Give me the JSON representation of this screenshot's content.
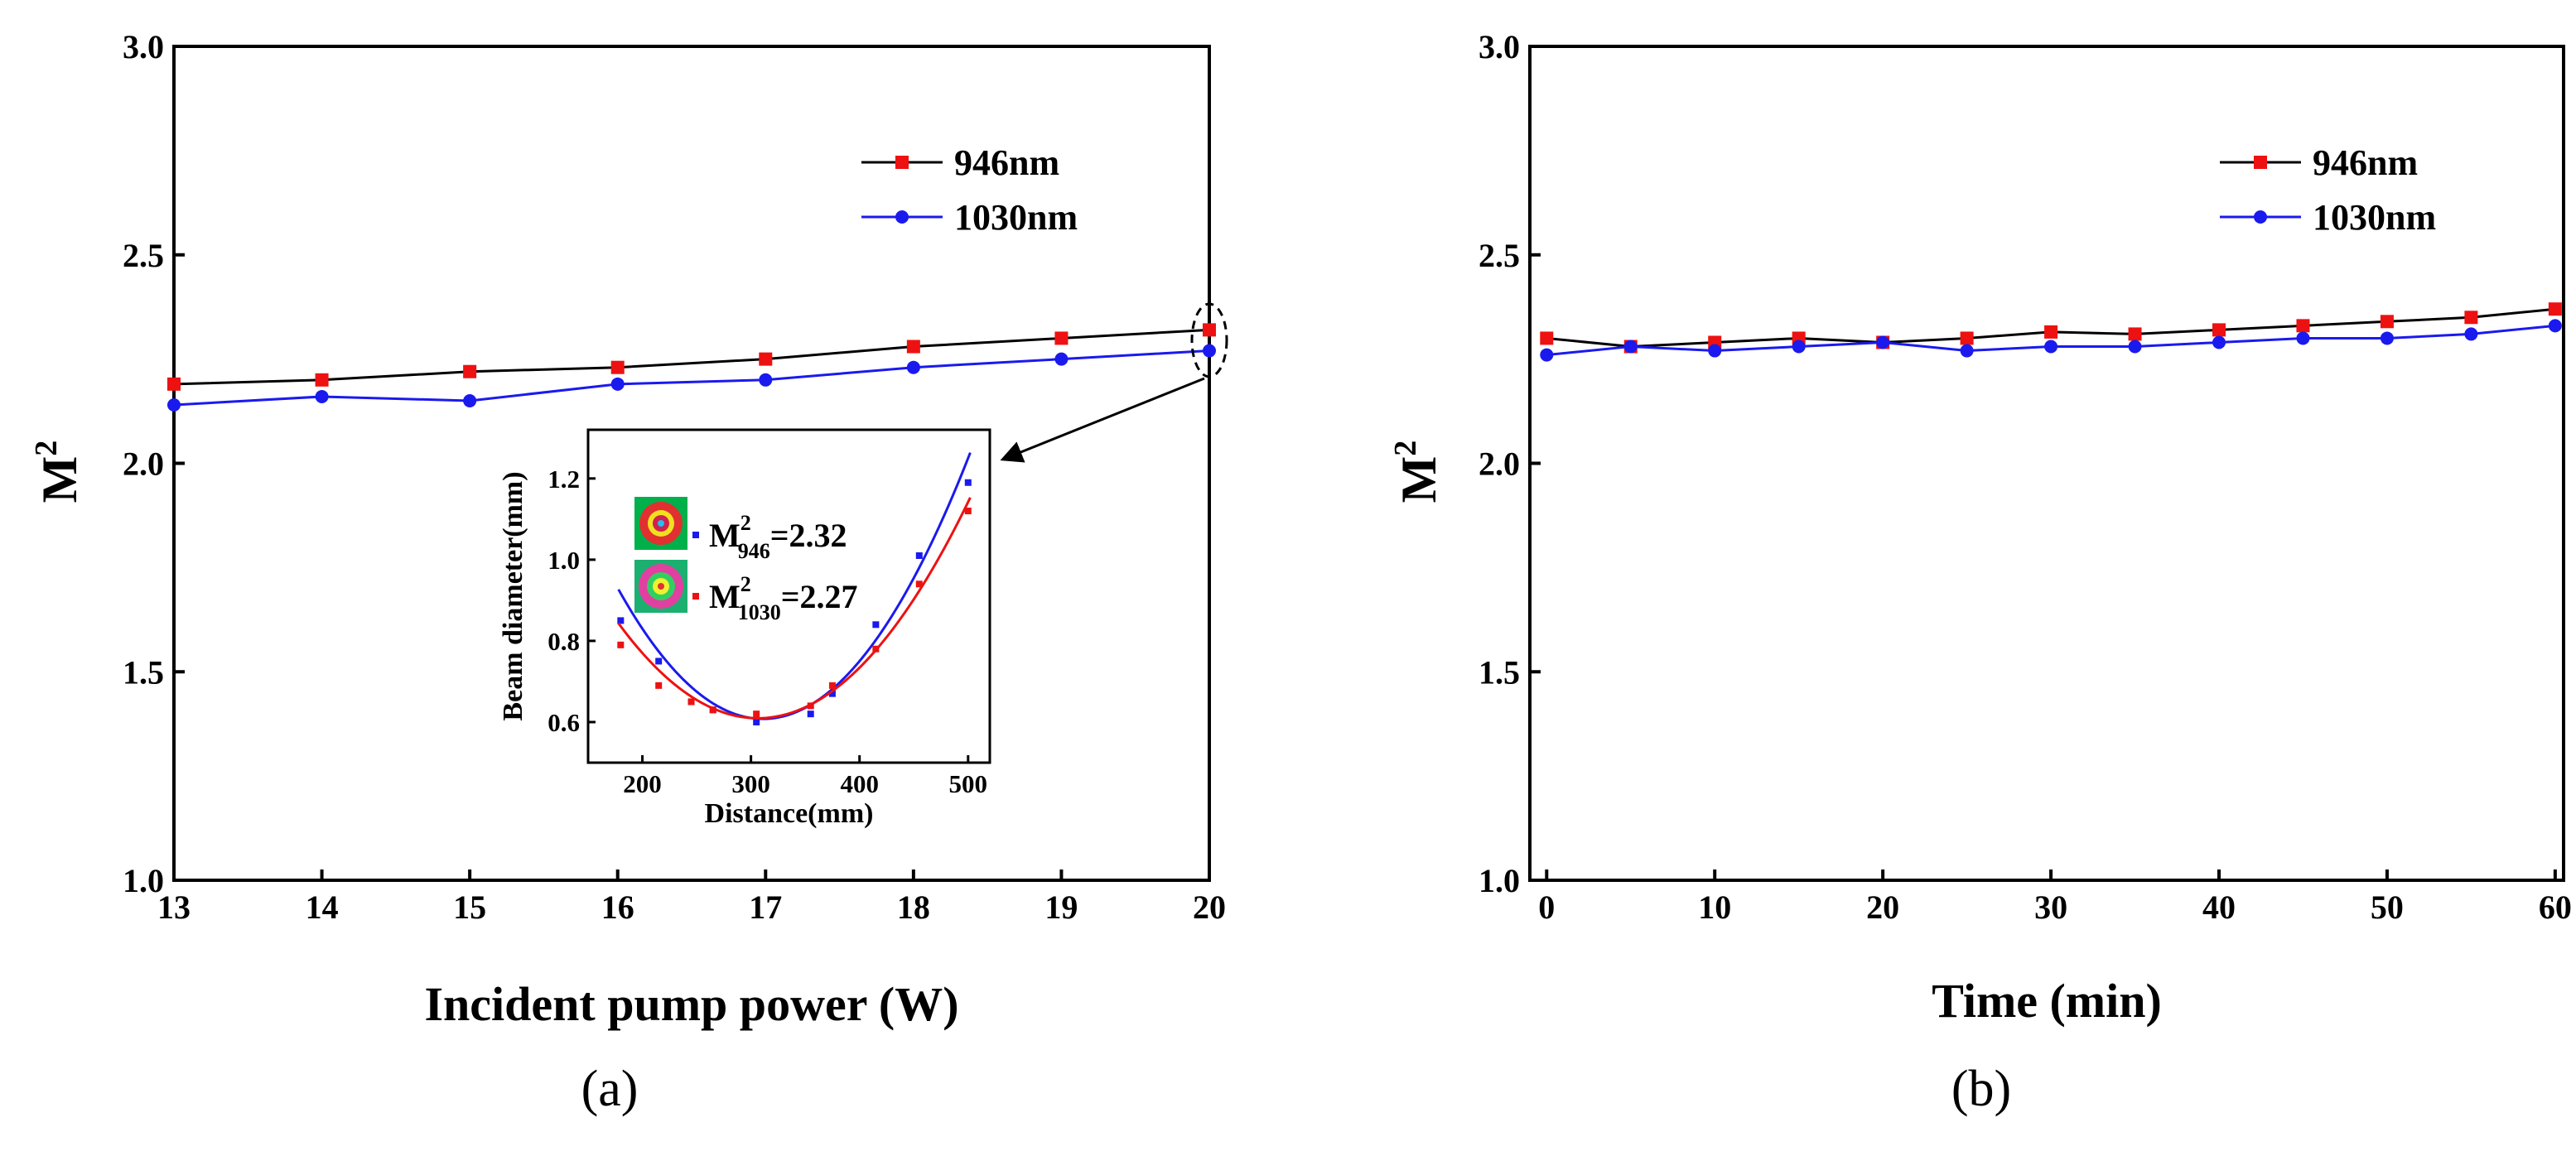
{
  "figure": {
    "panel_a_label": "(a)",
    "panel_b_label": "(b)"
  },
  "colors": {
    "series_946_marker": "#ee1111",
    "series_946_line": "#000000",
    "series_1030_marker": "#1a1aee",
    "series_1030_line": "#1a1aee",
    "inset_fit_946": "#1a1aee",
    "inset_fit_1030": "#ee1111"
  },
  "chart_data": [
    {
      "type": "line",
      "panel": "a",
      "title": "",
      "xlabel": "Incident pump power (W)",
      "ylabel": "M",
      "ylabel_sup": "2",
      "xlim": [
        13,
        20
      ],
      "ylim": [
        1.0,
        3.0
      ],
      "xticks": [
        13,
        14,
        15,
        16,
        17,
        18,
        19,
        20
      ],
      "yticks": [
        1.0,
        1.5,
        2.0,
        2.5,
        3.0
      ],
      "legend": "top-right",
      "x": [
        13,
        14,
        15,
        16,
        17,
        18,
        19,
        20
      ],
      "series": [
        {
          "name": "946nm",
          "marker": "square",
          "values": [
            2.19,
            2.2,
            2.22,
            2.23,
            2.25,
            2.28,
            2.3,
            2.32
          ]
        },
        {
          "name": "1030nm",
          "marker": "circle",
          "values": [
            2.14,
            2.16,
            2.15,
            2.19,
            2.2,
            2.23,
            2.25,
            2.27
          ]
        }
      ],
      "inset": {
        "type": "scatter",
        "xlabel": "Distance(mm)",
        "ylabel": "Beam diameter(mm)",
        "xlim": [
          150,
          520
        ],
        "ylim": [
          0.5,
          1.32
        ],
        "xticks": [
          200,
          300,
          400,
          500
        ],
        "yticks": [
          0.6,
          0.8,
          1.0,
          1.2
        ],
        "series": [
          {
            "name": "946nm",
            "x": [
              180,
              215,
              245,
              265,
              305,
              355,
              375,
              415,
              455,
              500
            ],
            "values": [
              0.85,
              0.75,
              0.65,
              0.63,
              0.6,
              0.62,
              0.67,
              0.84,
              1.01,
              1.19
            ],
            "fit": [
              1.8e-05,
              -0.0112,
              2.35
            ]
          },
          {
            "name": "1030nm",
            "x": [
              180,
              215,
              245,
              265,
              305,
              355,
              375,
              415,
              455,
              500
            ],
            "values": [
              0.79,
              0.69,
              0.65,
              0.63,
              0.62,
              0.64,
              0.69,
              0.78,
              0.94,
              1.12
            ],
            "fit": [
              1.42e-05,
              -0.0087,
              1.942
            ]
          }
        ],
        "annotations": [
          {
            "main": "M",
            "sup": "2",
            "sub": "946",
            "rest": "=2.32"
          },
          {
            "main": "M",
            "sup": "2",
            "sub": "1030",
            "rest": "=2.27"
          }
        ]
      }
    },
    {
      "type": "line",
      "panel": "b",
      "title": "",
      "xlabel": "Time (min)",
      "ylabel": "M",
      "ylabel_sup": "2",
      "xlim": [
        -1,
        60.5
      ],
      "ylim": [
        1.0,
        3.0
      ],
      "xticks": [
        0,
        10,
        20,
        30,
        40,
        50,
        60
      ],
      "yticks": [
        1.0,
        1.5,
        2.0,
        2.5,
        3.0
      ],
      "legend": "top-right",
      "x": [
        0,
        5,
        10,
        15,
        20,
        25,
        30,
        35,
        40,
        45,
        50,
        55,
        60
      ],
      "series": [
        {
          "name": "946nm",
          "marker": "square",
          "values": [
            2.3,
            2.28,
            2.29,
            2.3,
            2.29,
            2.3,
            2.315,
            2.31,
            2.32,
            2.33,
            2.34,
            2.35,
            2.37
          ]
        },
        {
          "name": "1030nm",
          "marker": "circle",
          "values": [
            2.26,
            2.28,
            2.27,
            2.28,
            2.29,
            2.27,
            2.28,
            2.28,
            2.29,
            2.3,
            2.3,
            2.31,
            2.33
          ]
        }
      ]
    }
  ]
}
